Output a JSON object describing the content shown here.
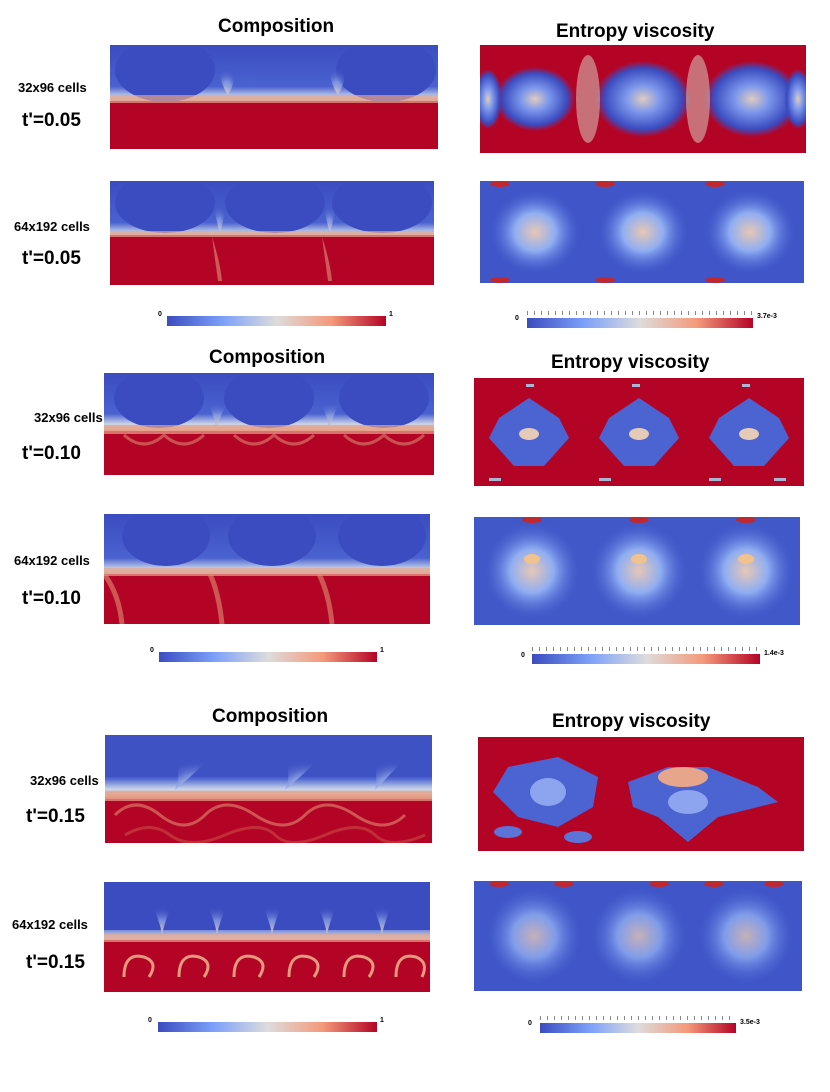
{
  "labels": {
    "composition": "Composition",
    "entropy_viscosity": "Entropy viscosity",
    "res_coarse": "32x96 cells",
    "res_fine": "64x192 cells"
  },
  "groups": [
    {
      "time": "t'=0.05",
      "comp_min": "0",
      "comp_max": "1",
      "ev_min": "0",
      "ev_max": "3.7e-3"
    },
    {
      "time": "t'=0.10",
      "comp_min": "0",
      "comp_max": "1",
      "ev_min": "0",
      "ev_max": "1.4e-3"
    },
    {
      "time": "t'=0.15",
      "comp_min": "0",
      "comp_max": "1",
      "ev_min": "0",
      "ev_max": "3.5e-3"
    }
  ],
  "colors": {
    "blue": "#3b4cc0",
    "light": "#dcdddd",
    "red": "#b40426"
  }
}
